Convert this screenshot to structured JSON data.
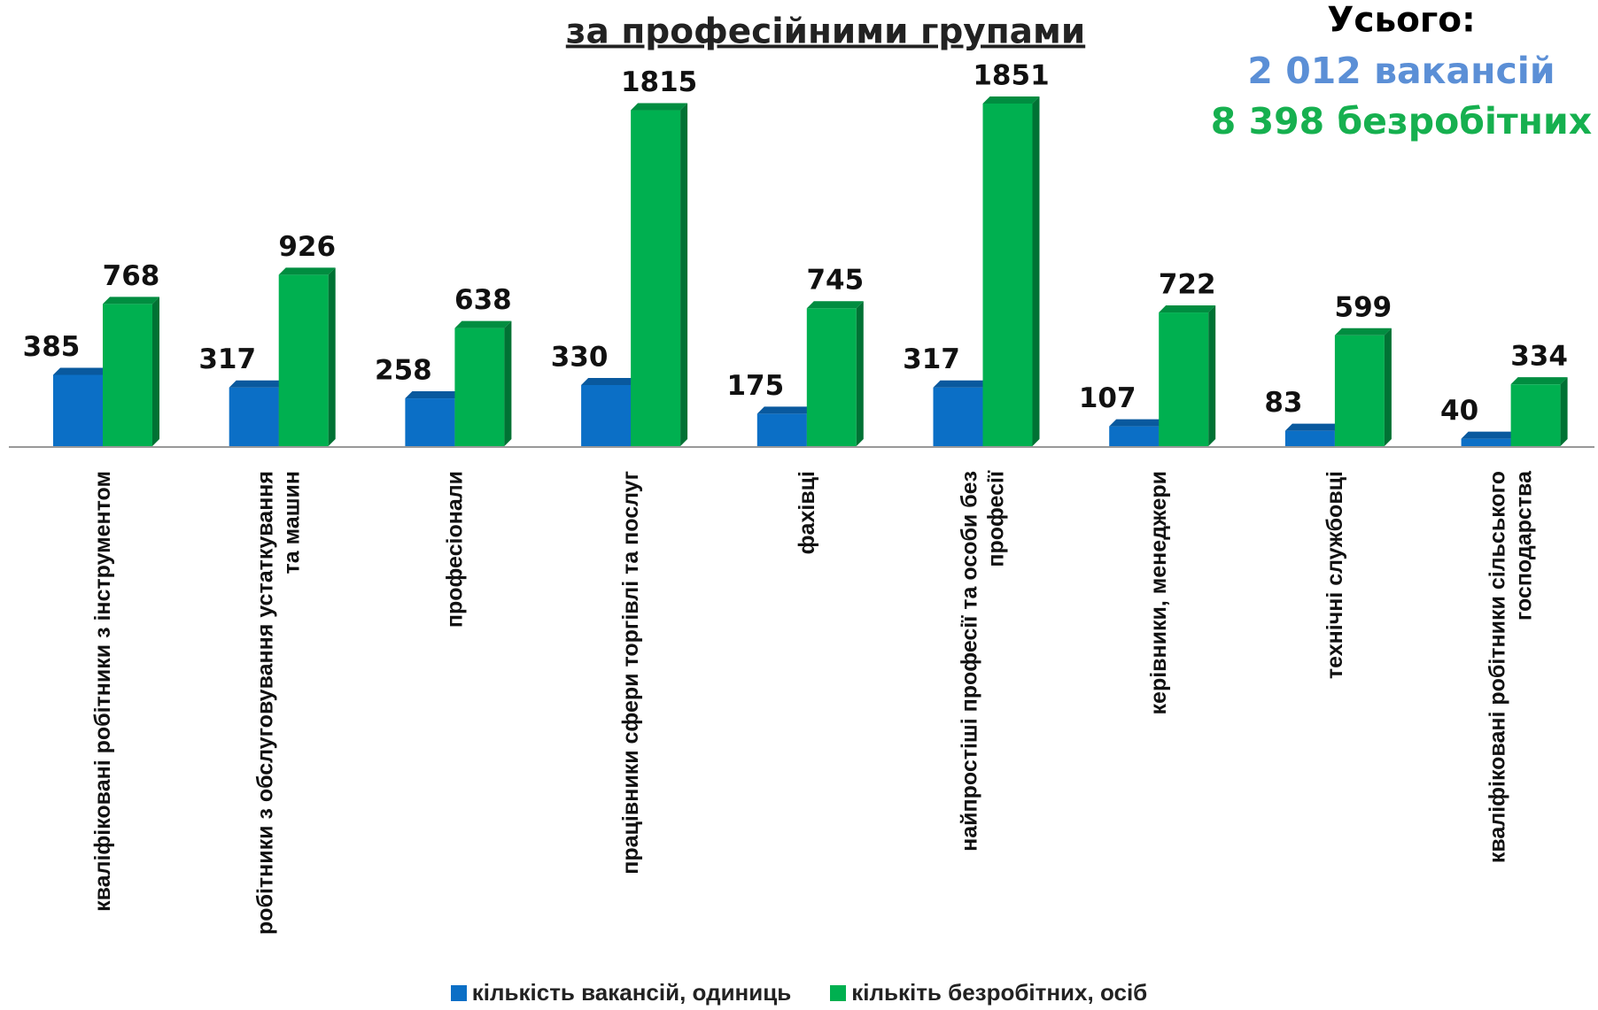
{
  "chart_data": {
    "type": "bar",
    "title": "за професійними групами",
    "annotations": [
      {
        "text": "Усього:",
        "color": "#000000"
      },
      {
        "text": "2 012 вакансій",
        "color": "#5b8fd6"
      },
      {
        "text": "8 398 безробітних",
        "color": "#16b04f"
      }
    ],
    "categories": [
      "кваліфіковані робітники з інструментом",
      "робітники з обслуговування устаткування та машин",
      "професіонали",
      "працівники сфери торгівлі та послуг",
      "фахівці",
      "найпростіші професії та особи без професії",
      "керівники, менеджери",
      "технічні службовці",
      "кваліфіковані робітники сільського господарства"
    ],
    "series": [
      {
        "name": "кількість вакансій, одиниць",
        "color": "#0b6fc6",
        "values": [
          385,
          317,
          258,
          330,
          175,
          317,
          107,
          83,
          40
        ]
      },
      {
        "name": "кількіть безробітних, осіб",
        "color": "#00b050",
        "values": [
          768,
          926,
          638,
          1815,
          745,
          1851,
          722,
          599,
          334
        ]
      }
    ],
    "legend": "bottom"
  }
}
